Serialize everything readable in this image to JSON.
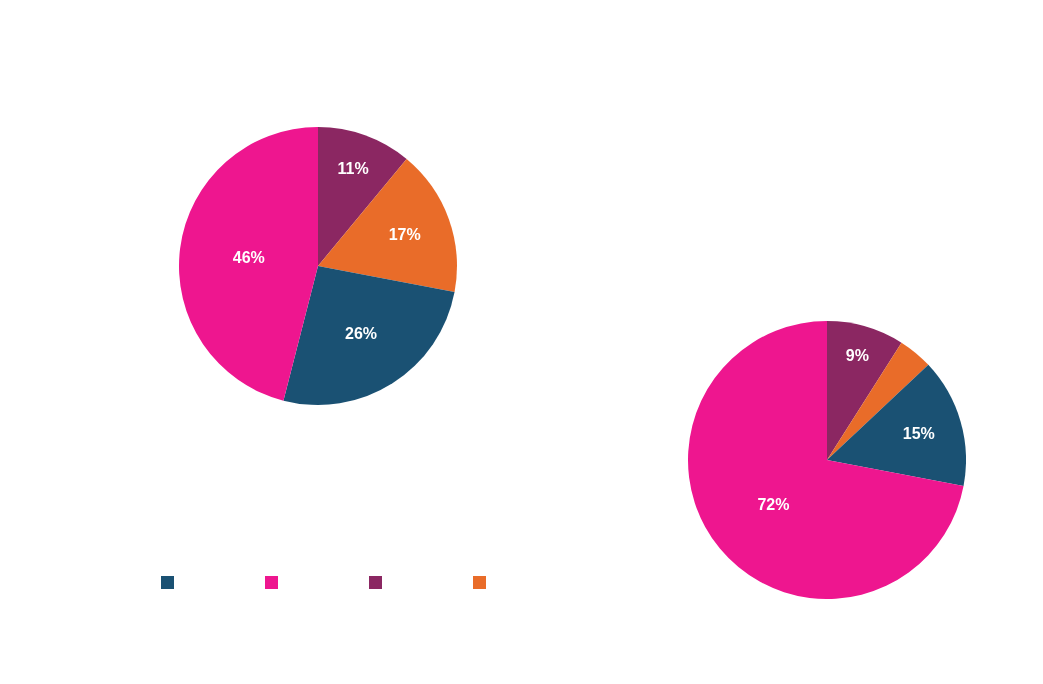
{
  "chart_data": [
    {
      "type": "pie",
      "categories": [
        null,
        null,
        null,
        null
      ],
      "values": [
        11,
        17,
        26,
        46
      ],
      "colors": [
        "#8b2762",
        "#e96c29",
        "#1a5173",
        "#ee168f"
      ],
      "value_labels": [
        "11%",
        "17%",
        "26%",
        "46%"
      ]
    },
    {
      "type": "pie",
      "categories": [
        null,
        null,
        null,
        null
      ],
      "values": [
        9,
        4,
        15,
        72
      ],
      "colors": [
        "#8b2762",
        "#e96c29",
        "#1a5173",
        "#ee168f"
      ],
      "value_labels": [
        "9%",
        null,
        "15%",
        "72%"
      ]
    }
  ]
}
